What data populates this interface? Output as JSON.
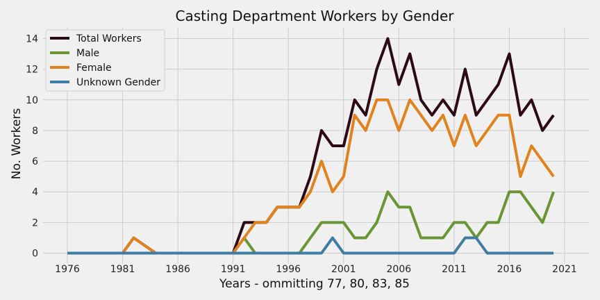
{
  "chart_data": {
    "type": "line",
    "title": "Casting Department Workers by Gender",
    "xlabel": "Years - ommitting 77, 80, 83, 85",
    "ylabel": "No. Workers",
    "xlim": [
      1973.8,
      2023.2
    ],
    "ylim": [
      -0.7,
      14.7
    ],
    "x_ticks": [
      1976,
      1981,
      1986,
      1991,
      1996,
      2001,
      2006,
      2011,
      2016,
      2021
    ],
    "y_ticks": [
      0,
      2,
      4,
      6,
      8,
      10,
      12,
      14
    ],
    "grid": true,
    "legend_position": "top-left",
    "x": [
      1976,
      1978,
      1979,
      1981,
      1982,
      1984,
      1986,
      1987,
      1988,
      1989,
      1990,
      1991,
      1992,
      1993,
      1994,
      1995,
      1996,
      1997,
      1998,
      1999,
      2000,
      2001,
      2002,
      2003,
      2004,
      2005,
      2006,
      2007,
      2008,
      2009,
      2010,
      2011,
      2012,
      2013,
      2014,
      2015,
      2016,
      2017,
      2018,
      2019,
      2020
    ],
    "series": [
      {
        "name": "Total Workers",
        "color": "#2b0a16",
        "values": [
          0,
          0,
          0,
          0,
          1,
          0,
          0,
          0,
          0,
          0,
          0,
          0,
          2,
          2,
          2,
          3,
          3,
          3,
          5,
          8,
          7,
          7,
          10,
          9,
          12,
          14,
          11,
          13,
          10,
          9,
          10,
          9,
          12,
          9,
          10,
          11,
          13,
          9,
          10,
          8,
          9
        ]
      },
      {
        "name": "Male",
        "color": "#6a9535",
        "values": [
          0,
          0,
          0,
          0,
          0,
          0,
          0,
          0,
          0,
          0,
          0,
          0,
          1,
          0,
          0,
          0,
          0,
          0,
          1,
          2,
          2,
          2,
          1,
          1,
          2,
          4,
          3,
          3,
          1,
          1,
          1,
          2,
          2,
          1,
          2,
          2,
          4,
          4,
          3,
          2,
          4
        ]
      },
      {
        "name": "Female",
        "color": "#e0831f",
        "values": [
          0,
          0,
          0,
          0,
          1,
          0,
          0,
          0,
          0,
          0,
          0,
          0,
          1,
          2,
          2,
          3,
          3,
          3,
          4,
          6,
          4,
          5,
          9,
          8,
          10,
          10,
          8,
          10,
          9,
          8,
          9,
          7,
          9,
          7,
          8,
          9,
          9,
          5,
          7,
          6,
          5
        ]
      },
      {
        "name": "Unknown Gender",
        "color": "#3f7ba3",
        "values": [
          0,
          0,
          0,
          0,
          0,
          0,
          0,
          0,
          0,
          0,
          0,
          0,
          0,
          0,
          0,
          0,
          0,
          0,
          0,
          0,
          1,
          0,
          0,
          0,
          0,
          0,
          0,
          0,
          0,
          0,
          0,
          0,
          1,
          1,
          0,
          0,
          0,
          0,
          0,
          0,
          0
        ]
      }
    ]
  }
}
